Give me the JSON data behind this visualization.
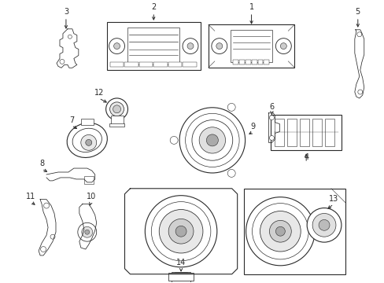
{
  "bg_color": "#ffffff",
  "line_color": "#2a2a2a",
  "figure_width": 4.89,
  "figure_height": 3.6,
  "dpi": 100
}
